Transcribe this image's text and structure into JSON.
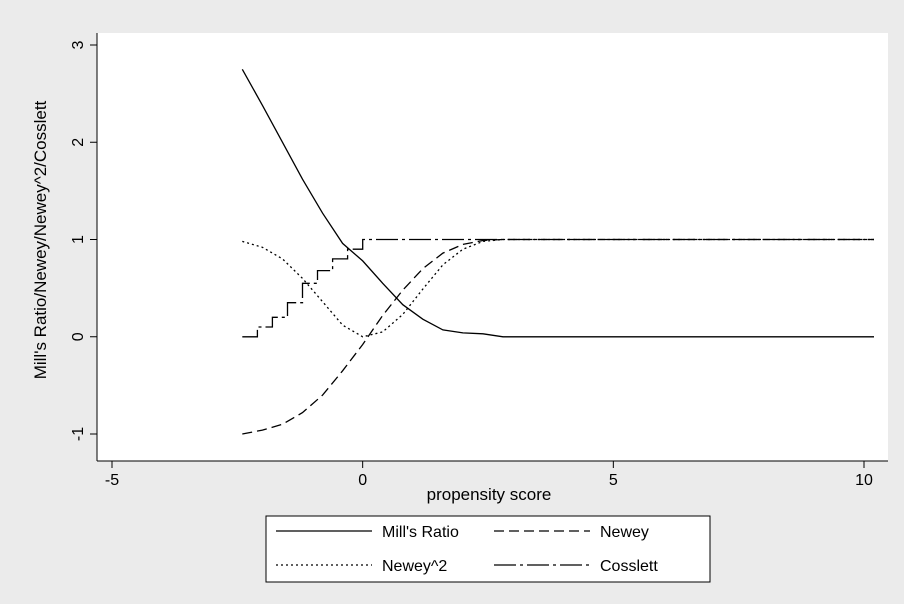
{
  "chart_data": {
    "type": "line",
    "xlabel": "propensity score",
    "ylabel": "Mill's Ratio/Newey/Newey^2/Cosslett",
    "xlim": [
      -5,
      10.5
    ],
    "ylim": [
      -1.1,
      3.1
    ],
    "xticks": [
      -5,
      0,
      5,
      10
    ],
    "yticks": [
      -1,
      0,
      1,
      2,
      3
    ],
    "grid": false,
    "legend_position": "bottom",
    "series": [
      {
        "name": "Mill's Ratio",
        "style": "solid",
        "x": [
          -2.4,
          -2.0,
          -1.6,
          -1.2,
          -0.8,
          -0.4,
          0.0,
          0.4,
          0.8,
          1.2,
          1.6,
          2.0,
          2.4,
          2.8,
          10.2
        ],
        "y": [
          2.75,
          2.38,
          2.0,
          1.62,
          1.27,
          0.96,
          0.78,
          0.55,
          0.33,
          0.18,
          0.07,
          0.04,
          0.03,
          0.0,
          0.0
        ]
      },
      {
        "name": "Newey",
        "style": "dashed",
        "x": [
          -2.4,
          -2.0,
          -1.6,
          -1.2,
          -0.8,
          -0.4,
          0.0,
          0.4,
          0.8,
          1.2,
          1.6,
          2.0,
          2.4,
          2.8,
          10.2
        ],
        "y": [
          -1.0,
          -0.96,
          -0.9,
          -0.78,
          -0.6,
          -0.35,
          -0.08,
          0.22,
          0.48,
          0.7,
          0.86,
          0.95,
          0.99,
          1.0,
          1.0
        ]
      },
      {
        "name": "Newey^2",
        "style": "dotted",
        "x": [
          -2.4,
          -2.0,
          -1.6,
          -1.2,
          -0.8,
          -0.4,
          0.0,
          0.4,
          0.8,
          1.2,
          1.6,
          2.0,
          2.4,
          2.8,
          10.2
        ],
        "y": [
          0.98,
          0.92,
          0.8,
          0.6,
          0.36,
          0.12,
          0.0,
          0.05,
          0.23,
          0.49,
          0.74,
          0.9,
          0.98,
          1.0,
          1.0
        ]
      },
      {
        "name": "Cosslett",
        "style": "longdash-dot",
        "x": [
          -2.4,
          -2.1,
          -2.1,
          -1.8,
          -1.8,
          -1.5,
          -1.5,
          -1.2,
          -1.2,
          -0.9,
          -0.9,
          -0.6,
          -0.6,
          -0.3,
          -0.3,
          0.0,
          0.0,
          10.2
        ],
        "y": [
          0.0,
          0.0,
          0.1,
          0.1,
          0.2,
          0.2,
          0.35,
          0.35,
          0.55,
          0.55,
          0.68,
          0.68,
          0.8,
          0.8,
          0.9,
          0.9,
          1.0,
          1.0
        ]
      }
    ]
  }
}
